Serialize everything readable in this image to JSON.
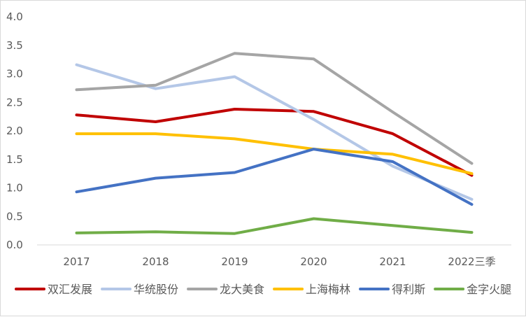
{
  "chart_data": {
    "type": "line",
    "title": "",
    "xlabel": "",
    "ylabel": "",
    "categories": [
      "2017",
      "2018",
      "2019",
      "2020",
      "2021",
      "2022三季"
    ],
    "ylim": [
      0,
      4.0
    ],
    "yticks": [
      "0.0",
      "0.5",
      "1.0",
      "1.5",
      "2.0",
      "2.5",
      "3.0",
      "3.5",
      "4.0"
    ],
    "grid": false,
    "legend_position": "bottom",
    "series": [
      {
        "name": "双汇发展",
        "color": "#c00000",
        "values": [
          2.28,
          2.16,
          2.38,
          2.34,
          1.95,
          1.22
        ]
      },
      {
        "name": "华统股份",
        "color": "#b4c7e7",
        "values": [
          3.16,
          2.74,
          2.95,
          2.2,
          1.38,
          0.8
        ]
      },
      {
        "name": "龙大美食",
        "color": "#a5a5a5",
        "values": [
          2.72,
          2.8,
          3.36,
          3.26,
          2.33,
          1.43
        ]
      },
      {
        "name": "上海梅林",
        "color": "#ffc000",
        "values": [
          1.95,
          1.95,
          1.86,
          1.68,
          1.59,
          1.25
        ]
      },
      {
        "name": "得利斯",
        "color": "#4472c4",
        "values": [
          0.93,
          1.17,
          1.27,
          1.68,
          1.46,
          0.71
        ]
      },
      {
        "name": "金字火腿",
        "color": "#70ad47",
        "values": [
          0.21,
          0.23,
          0.2,
          0.46,
          0.34,
          0.22
        ]
      }
    ]
  }
}
